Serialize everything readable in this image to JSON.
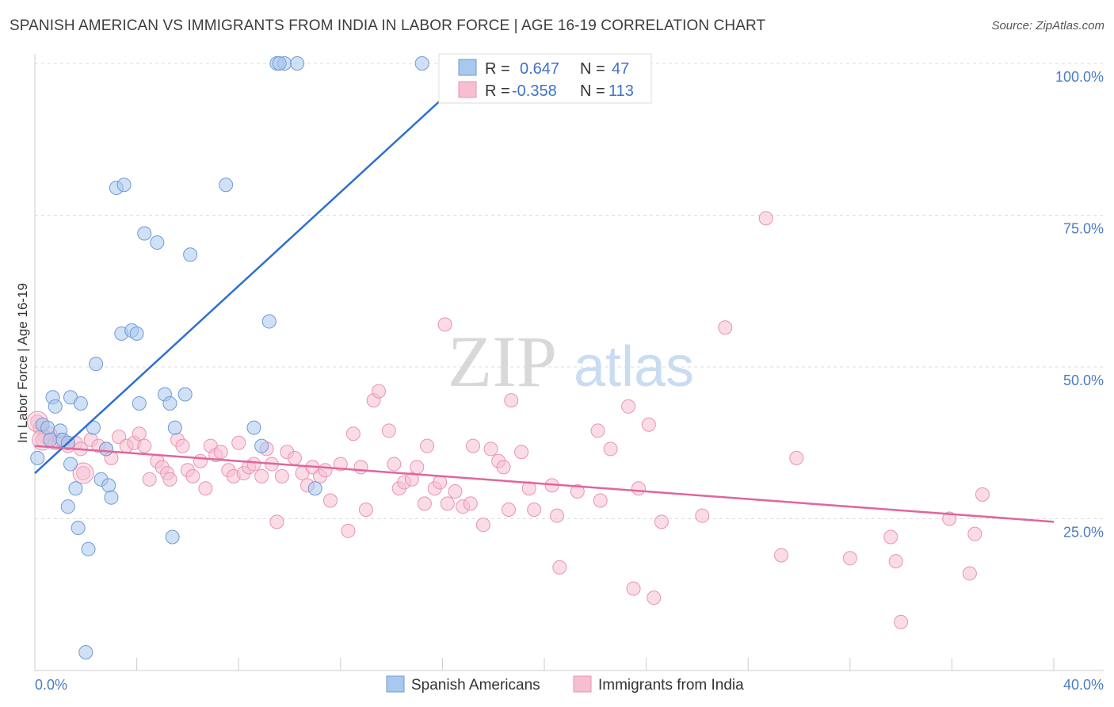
{
  "title": "SPANISH AMERICAN VS IMMIGRANTS FROM INDIA IN LABOR FORCE | AGE 16-19 CORRELATION CHART",
  "source": "Source: ZipAtlas.com",
  "watermark": {
    "zip": "ZIP",
    "atlas": "atlas"
  },
  "chart_data": {
    "type": "scatter",
    "title": "SPANISH AMERICAN VS IMMIGRANTS FROM INDIA IN LABOR FORCE | AGE 16-19 CORRELATION CHART",
    "ylabel": "In Labor Force | Age 16-19",
    "xlabel": "",
    "xlim": [
      0,
      40
    ],
    "ylim": [
      0,
      100
    ],
    "x_tick_labels": {
      "min": "0.0%",
      "max": "40.0%"
    },
    "y_ticks": [
      {
        "value": 25,
        "label": "25.0%"
      },
      {
        "value": 50,
        "label": "50.0%"
      },
      {
        "value": 75,
        "label": "75.0%"
      },
      {
        "value": 100,
        "label": "100.0%"
      }
    ],
    "grid": "horizontal dashed",
    "legend_position": "top-center",
    "series": [
      {
        "name": "Spanish Americans",
        "color": "#a9c8ee",
        "stroke": "#6f9ad6",
        "line_color": "#2e6fd1",
        "R": "0.647",
        "N": "47",
        "trend": {
          "x0": 0.0,
          "y0": 32.5,
          "x1": 17.5,
          "y1": 100.0
        },
        "points": [
          [
            9.5,
            100
          ],
          [
            9.8,
            100
          ],
          [
            9.6,
            100
          ],
          [
            10.3,
            100
          ],
          [
            15.2,
            100
          ],
          [
            3.2,
            79.5
          ],
          [
            3.5,
            80
          ],
          [
            7.5,
            80
          ],
          [
            4.3,
            72
          ],
          [
            4.8,
            70.5
          ],
          [
            6.1,
            68.5
          ],
          [
            9.2,
            57.5
          ],
          [
            3.4,
            55.5
          ],
          [
            3.8,
            56
          ],
          [
            4.0,
            55.5
          ],
          [
            2.4,
            50.5
          ],
          [
            0.7,
            45
          ],
          [
            1.4,
            45
          ],
          [
            1.8,
            44
          ],
          [
            4.1,
            44
          ],
          [
            5.1,
            45.5
          ],
          [
            5.3,
            44
          ],
          [
            5.9,
            45.5
          ],
          [
            0.8,
            43.5
          ],
          [
            0.3,
            40.5
          ],
          [
            0.5,
            40
          ],
          [
            0.6,
            38
          ],
          [
            1.0,
            39.5
          ],
          [
            1.1,
            38
          ],
          [
            1.3,
            37.5
          ],
          [
            2.3,
            40
          ],
          [
            5.5,
            40
          ],
          [
            8.6,
            40
          ],
          [
            8.9,
            37
          ],
          [
            2.8,
            36.5
          ],
          [
            0.1,
            35
          ],
          [
            1.4,
            34
          ],
          [
            1.6,
            30
          ],
          [
            2.6,
            31.5
          ],
          [
            2.9,
            30.5
          ],
          [
            3.0,
            28.5
          ],
          [
            1.3,
            27
          ],
          [
            11.0,
            30
          ],
          [
            1.7,
            23.5
          ],
          [
            5.4,
            22
          ],
          [
            2.1,
            20
          ],
          [
            2.0,
            3
          ]
        ]
      },
      {
        "name": "Immigrants from India",
        "color": "#f6bfd1",
        "stroke": "#e993b0",
        "line_color": "#e0669a",
        "R": "-0.358",
        "N": "113",
        "trend": {
          "x0": 0.0,
          "y0": 37.0,
          "x1": 40.0,
          "y1": 24.5
        },
        "points": [
          [
            0.2,
            40
          ],
          [
            0.4,
            38.5
          ],
          [
            0.6,
            39
          ],
          [
            0.8,
            37.5
          ],
          [
            1.0,
            38
          ],
          [
            1.3,
            37
          ],
          [
            1.6,
            37.5
          ],
          [
            1.8,
            36.5
          ],
          [
            2.2,
            38
          ],
          [
            2.5,
            37
          ],
          [
            2.8,
            36.5
          ],
          [
            3.0,
            35
          ],
          [
            3.3,
            38.5
          ],
          [
            3.6,
            37
          ],
          [
            3.9,
            37.5
          ],
          [
            4.1,
            39
          ],
          [
            4.3,
            37
          ],
          [
            4.5,
            31.5
          ],
          [
            4.8,
            34.5
          ],
          [
            5.0,
            33.5
          ],
          [
            5.2,
            32.5
          ],
          [
            5.3,
            31.5
          ],
          [
            5.6,
            38
          ],
          [
            5.8,
            37
          ],
          [
            6.0,
            33
          ],
          [
            6.2,
            32
          ],
          [
            6.5,
            34.5
          ],
          [
            6.7,
            30
          ],
          [
            6.9,
            37
          ],
          [
            7.1,
            35.5
          ],
          [
            7.3,
            36
          ],
          [
            7.6,
            33
          ],
          [
            7.8,
            32
          ],
          [
            8.0,
            37.5
          ],
          [
            8.2,
            32.5
          ],
          [
            8.4,
            33.5
          ],
          [
            8.6,
            34
          ],
          [
            8.9,
            32
          ],
          [
            9.1,
            36.5
          ],
          [
            9.3,
            34
          ],
          [
            9.5,
            24.5
          ],
          [
            9.7,
            32
          ],
          [
            9.9,
            36
          ],
          [
            10.2,
            35
          ],
          [
            10.5,
            32.5
          ],
          [
            10.7,
            30.5
          ],
          [
            10.9,
            33.5
          ],
          [
            11.2,
            32
          ],
          [
            11.4,
            33
          ],
          [
            11.6,
            28
          ],
          [
            12.0,
            34
          ],
          [
            12.3,
            23
          ],
          [
            12.5,
            39
          ],
          [
            12.8,
            33.5
          ],
          [
            13.0,
            26.5
          ],
          [
            13.3,
            44.5
          ],
          [
            13.5,
            46
          ],
          [
            13.9,
            39.5
          ],
          [
            14.1,
            34
          ],
          [
            14.3,
            30
          ],
          [
            14.5,
            31
          ],
          [
            14.8,
            31.5
          ],
          [
            15.0,
            33.5
          ],
          [
            15.3,
            27.5
          ],
          [
            15.4,
            37
          ],
          [
            15.7,
            30
          ],
          [
            15.9,
            31
          ],
          [
            16.1,
            57
          ],
          [
            16.2,
            27.5
          ],
          [
            16.5,
            29.5
          ],
          [
            16.8,
            27
          ],
          [
            17.1,
            27.5
          ],
          [
            17.2,
            37
          ],
          [
            17.6,
            24
          ],
          [
            17.9,
            36.5
          ],
          [
            18.2,
            34.5
          ],
          [
            18.4,
            33.5
          ],
          [
            18.6,
            26.5
          ],
          [
            18.7,
            44.5
          ],
          [
            19.1,
            36
          ],
          [
            19.4,
            30
          ],
          [
            19.6,
            26.5
          ],
          [
            20.3,
            30.5
          ],
          [
            20.5,
            25.5
          ],
          [
            20.6,
            17
          ],
          [
            21.3,
            29.5
          ],
          [
            22.1,
            39.5
          ],
          [
            22.2,
            28
          ],
          [
            22.6,
            36.5
          ],
          [
            23.3,
            43.5
          ],
          [
            23.7,
            30
          ],
          [
            23.5,
            13.5
          ],
          [
            24.1,
            40.5
          ],
          [
            24.3,
            12
          ],
          [
            24.6,
            24.5
          ],
          [
            26.2,
            25.5
          ],
          [
            27.1,
            56.5
          ],
          [
            28.7,
            74.5
          ],
          [
            29.3,
            19
          ],
          [
            29.9,
            35
          ],
          [
            32.0,
            18.5
          ],
          [
            33.6,
            22
          ],
          [
            33.8,
            18
          ],
          [
            34.0,
            8
          ],
          [
            35.9,
            25
          ],
          [
            36.7,
            16
          ],
          [
            36.9,
            22.5
          ],
          [
            37.2,
            29
          ],
          [
            0.1,
            41
          ],
          [
            0.3,
            38
          ],
          [
            1.9,
            32.5
          ]
        ],
        "big_points": [
          [
            0.1,
            41
          ],
          [
            1.9,
            32.5
          ],
          [
            0.3,
            38
          ]
        ]
      }
    ]
  }
}
